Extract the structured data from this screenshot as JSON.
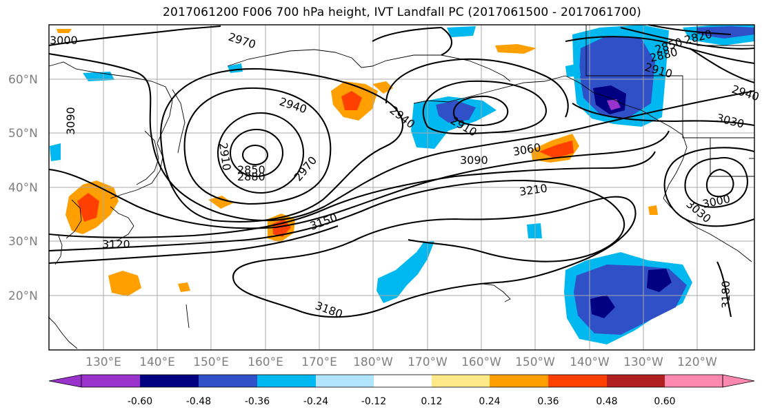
{
  "title": "2017061200 F006 700 hPa height, IVT Landfall PC (2017061500 - 2017061700)",
  "lat_labels": [
    "60°N",
    "50°N",
    "40°N",
    "30°N",
    "20°N"
  ],
  "lon_labels": [
    "130°E",
    "140°E",
    "150°E",
    "160°E",
    "170°E",
    "180°W",
    "170°W",
    "160°W",
    "150°W",
    "140°W",
    "130°W",
    "120°W"
  ],
  "contour_labels": [
    "3000",
    "2970",
    "2940",
    "2910",
    "2850",
    "2880",
    "2970",
    "3120",
    "3150",
    "3180",
    "3090",
    "3060",
    "3210",
    "2940",
    "2910",
    "2850",
    "2880",
    "2820",
    "2910",
    "2940",
    "3030",
    "3030",
    "3000",
    "3180",
    "3090"
  ],
  "colorbar": {
    "ticks": [
      "-0.60",
      "-0.48",
      "-0.36",
      "-0.24",
      "-0.12",
      "0.12",
      "0.24",
      "0.36",
      "0.48",
      "0.60"
    ],
    "colors": [
      "#9a33cc",
      "#000080",
      "#3050c8",
      "#00b8f0",
      "#b0e4ff",
      "#ffffff",
      "#ffe888",
      "#ffa000",
      "#ff4000",
      "#b02020",
      "#ff88b0"
    ]
  }
}
